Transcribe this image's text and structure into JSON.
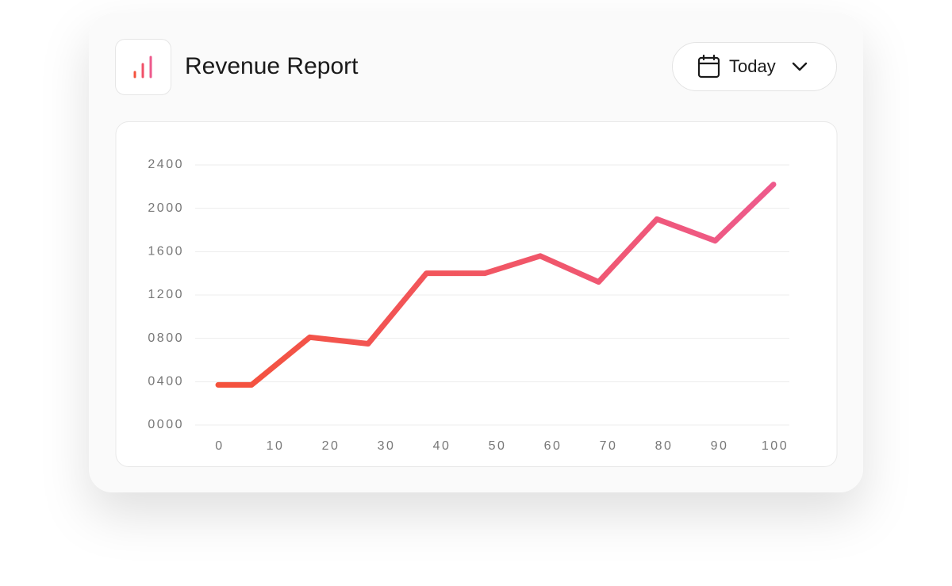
{
  "header": {
    "title": "Revenue Report",
    "date_button": "Today"
  },
  "chart_data": {
    "type": "line",
    "x": [
      0,
      6,
      16.5,
      27,
      37.5,
      48,
      58,
      68.5,
      79,
      89.5,
      100
    ],
    "series": [
      {
        "colors": [
          "#f4523c",
          "#ee5a8c"
        ],
        "values": [
          370,
          370,
          810,
          750,
          1400,
          1400,
          1560,
          1320,
          1900,
          1700,
          2220
        ]
      }
    ],
    "xlim": [
      0,
      100
    ],
    "xticks": [
      0,
      10,
      20,
      30,
      40,
      50,
      60,
      70,
      80,
      90,
      100
    ],
    "ylim": [
      0,
      2400
    ],
    "yticks": [
      {
        "value": 0,
        "label": "0000"
      },
      {
        "value": 400,
        "label": "0400"
      },
      {
        "value": 800,
        "label": "0800"
      },
      1200,
      1600,
      2000,
      2400
    ],
    "grid": true
  }
}
